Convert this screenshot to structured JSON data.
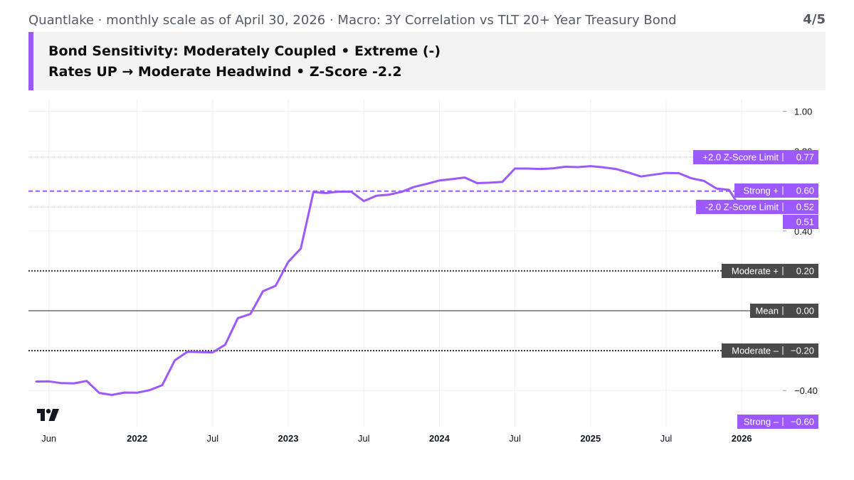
{
  "header": {
    "title": "Quantlake · monthly scale as of April 30, 2026 · Macro: 3Y Correlation vs TLT 20+ Year Treasury Bond",
    "page": "4/5"
  },
  "banner": {
    "line1": "Bond Sensitivity: Moderately Coupled • Extreme (-)",
    "line2": "Rates UP → Moderate Headwind • Z-Score -2.2",
    "accent_color": "#9b59ff"
  },
  "logo": "tradingview-logo-icon",
  "chart_data": {
    "type": "line",
    "title": "Macro: 3Y Correlation vs TLT 20+ Year Treasury Bond",
    "series": [
      {
        "color": "#9b59ff",
        "x": [
          "2021-05",
          "2021-06",
          "2021-07",
          "2021-08",
          "2021-09",
          "2021-10",
          "2021-11",
          "2021-12",
          "2022-01",
          "2022-02",
          "2022-03",
          "2022-04",
          "2022-05",
          "2022-06",
          "2022-07",
          "2022-08",
          "2022-09",
          "2022-10",
          "2022-11",
          "2022-12",
          "2023-01",
          "2023-02",
          "2023-03",
          "2023-04",
          "2023-05",
          "2023-06",
          "2023-07",
          "2023-08",
          "2023-09",
          "2023-10",
          "2023-11",
          "2023-12",
          "2024-01",
          "2024-02",
          "2024-03",
          "2024-04",
          "2024-05",
          "2024-06",
          "2024-07",
          "2024-08",
          "2024-09",
          "2024-10",
          "2024-11",
          "2024-12",
          "2025-01",
          "2025-02",
          "2025-03",
          "2025-04",
          "2025-05",
          "2025-06",
          "2025-07",
          "2025-08",
          "2025-09",
          "2025-10",
          "2025-11",
          "2025-12"
        ],
        "values": [
          -0.355,
          -0.354,
          -0.363,
          -0.364,
          -0.352,
          -0.412,
          -0.422,
          -0.41,
          -0.411,
          -0.398,
          -0.373,
          -0.248,
          -0.206,
          -0.207,
          -0.209,
          -0.17,
          -0.037,
          -0.016,
          0.098,
          0.125,
          0.245,
          0.312,
          0.595,
          0.59,
          0.597,
          0.597,
          0.55,
          0.577,
          0.582,
          0.596,
          0.621,
          0.636,
          0.653,
          0.66,
          0.668,
          0.64,
          0.642,
          0.646,
          0.713,
          0.713,
          0.711,
          0.714,
          0.722,
          0.72,
          0.725,
          0.719,
          0.711,
          0.693,
          0.673,
          0.682,
          0.691,
          0.69,
          0.664,
          0.651,
          0.613,
          0.606
        ]
      }
    ],
    "last_value": 0.51,
    "yticks": [
      "1.00",
      "0.80",
      "0.40",
      "−0.40"
    ],
    "ylim": [
      -0.6,
      1.0
    ],
    "xticks": [
      {
        "label": "Jun",
        "date": "2021-06",
        "bold": false
      },
      {
        "label": "2022",
        "date": "2022-01",
        "bold": true
      },
      {
        "label": "Jul",
        "date": "2022-07",
        "bold": false
      },
      {
        "label": "2023",
        "date": "2023-01",
        "bold": true
      },
      {
        "label": "Jul",
        "date": "2023-07",
        "bold": false
      },
      {
        "label": "2024",
        "date": "2024-01",
        "bold": true
      },
      {
        "label": "Jul",
        "date": "2024-07",
        "bold": false
      },
      {
        "label": "2025",
        "date": "2025-01",
        "bold": true
      },
      {
        "label": "Jul",
        "date": "2025-07",
        "bold": false
      },
      {
        "label": "2026",
        "date": "2026-01",
        "bold": true
      }
    ],
    "reference_lines": [
      {
        "name": "Strong +",
        "value": 0.6,
        "value_label": "0.60",
        "style": "dashed",
        "color": "#9b59ff"
      },
      {
        "name": "Moderate +",
        "value": 0.2,
        "value_label": "0.20",
        "style": "dotted",
        "color": "#333333"
      },
      {
        "name": "Mean",
        "value": 0.0,
        "value_label": "0.00",
        "style": "solid",
        "color": "#555555"
      },
      {
        "name": "Moderate –",
        "value": -0.2,
        "value_label": "−0.20",
        "style": "dotted",
        "color": "#333333"
      },
      {
        "name": "Strong –",
        "value": -0.6,
        "value_label": "−0.60",
        "style": "none",
        "color": "#9b59ff"
      }
    ],
    "zscore_limits": [
      {
        "name": "+2.0 Z-Score Limit",
        "value": 0.77,
        "value_label": "0.77"
      },
      {
        "name": "-2.0 Z-Score Limit",
        "value": 0.52,
        "value_label": "0.52"
      }
    ],
    "last_value_label": "0.51",
    "grid": true,
    "colors": {
      "accent": "#9b59ff",
      "neutral_label": "#4a4a4a"
    }
  }
}
